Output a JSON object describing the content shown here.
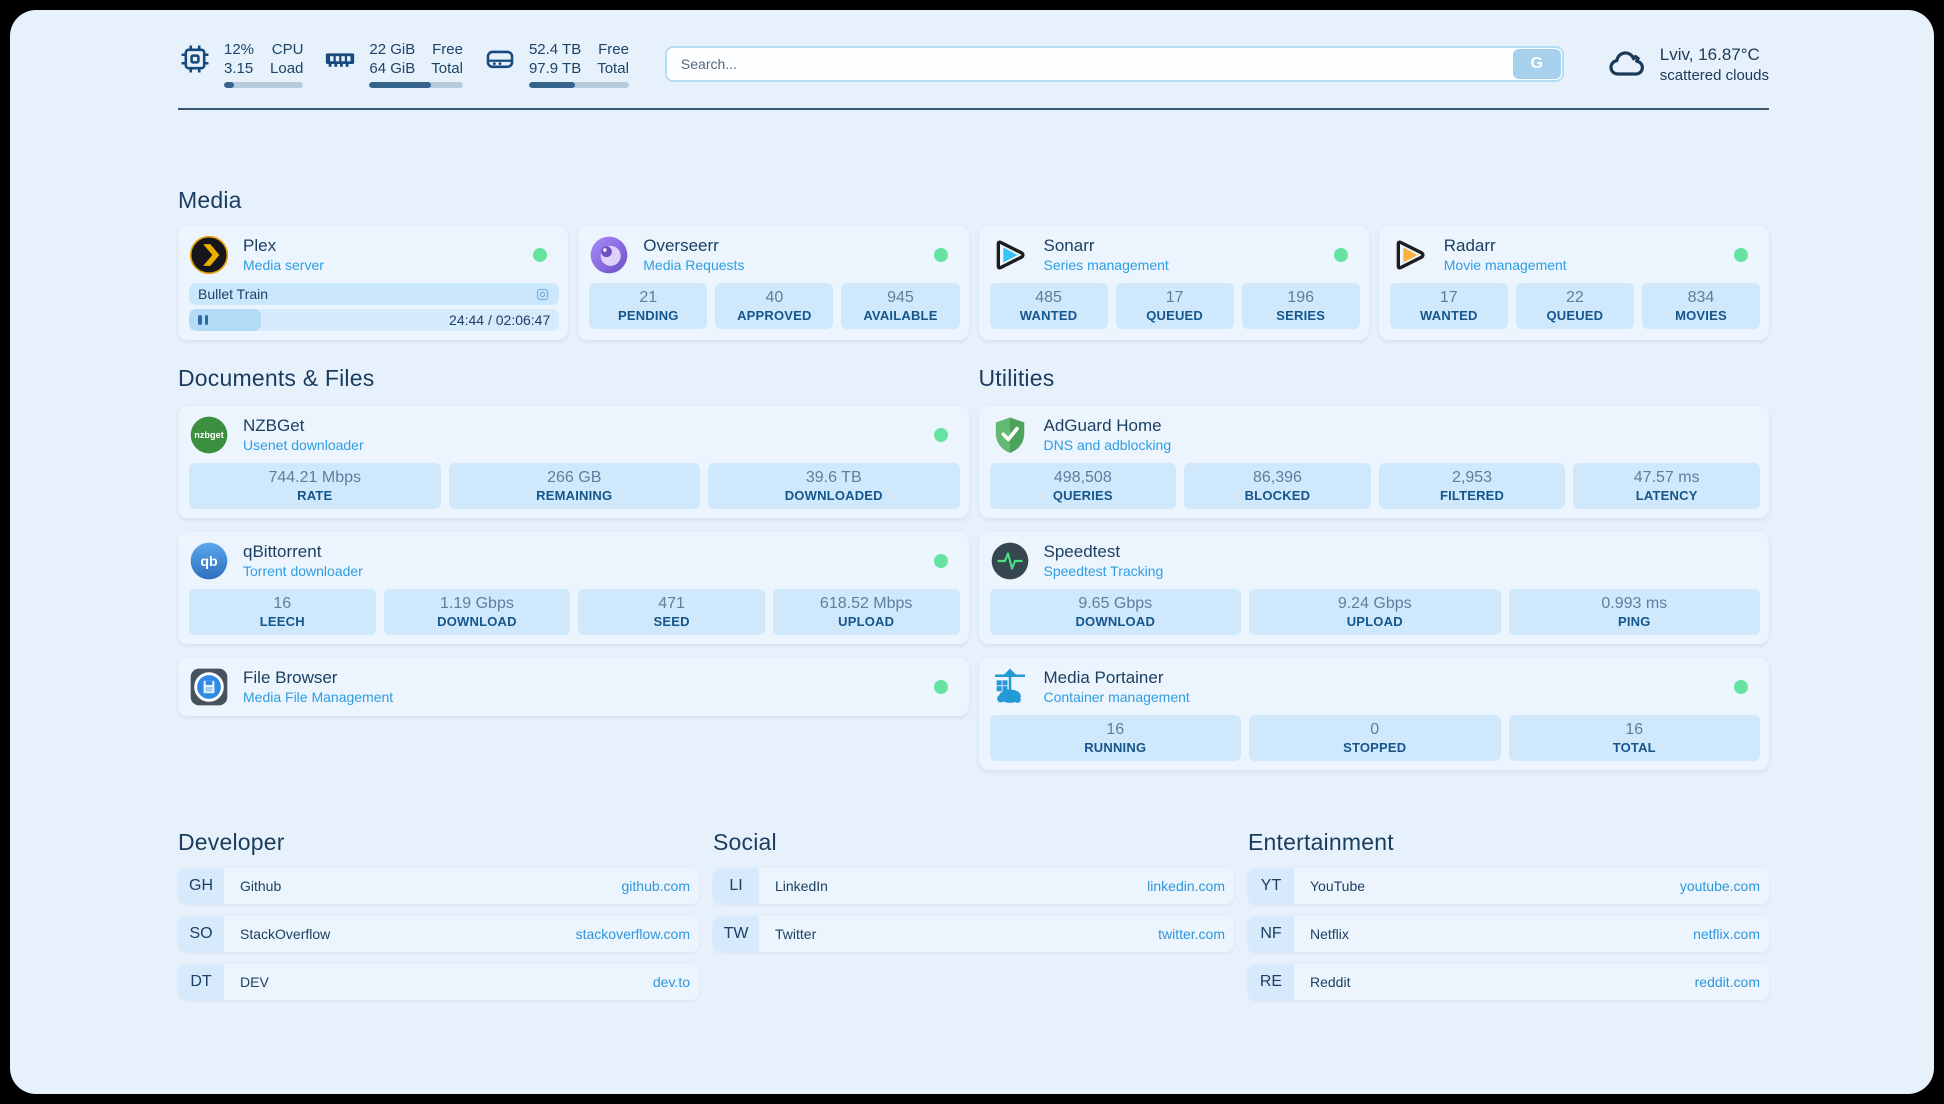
{
  "topbar": {
    "cpu": {
      "value_top": "12%",
      "value_bottom": "3.15",
      "label_top": "CPU",
      "label_bottom": "Load",
      "progress_pct": 12
    },
    "memory": {
      "value_top": "22 GiB",
      "value_bottom": "64 GiB",
      "label_top": "Free",
      "label_bottom": "Total",
      "progress_pct": 66
    },
    "storage": {
      "value_top": "52.4 TB",
      "value_bottom": "97.9 TB",
      "label_top": "Free",
      "label_bottom": "Total",
      "progress_pct": 46
    },
    "search": {
      "placeholder": "Search...",
      "button_label": "G"
    },
    "weather": {
      "location_temp": "Lviv, 16.87°C",
      "condition": "scattered clouds"
    }
  },
  "colors": {
    "accent_blue": "#2f9de2",
    "status_online": "#66e3a1",
    "label_blue": "#15568c",
    "navy": "#1c3f63"
  },
  "sections": {
    "media": {
      "title": "Media",
      "cards": [
        {
          "name": "Plex",
          "subtitle": "Media server",
          "status": "online",
          "now_playing": {
            "title": "Bullet Train",
            "time": "24:44 / 02:06:47",
            "progress_pct": 19.5
          }
        },
        {
          "name": "Overseerr",
          "subtitle": "Media Requests",
          "status": "online",
          "stats": [
            {
              "value": "21",
              "label": "PENDING"
            },
            {
              "value": "40",
              "label": "APPROVED"
            },
            {
              "value": "945",
              "label": "AVAILABLE"
            }
          ]
        },
        {
          "name": "Sonarr",
          "subtitle": "Series management",
          "status": "online",
          "stats": [
            {
              "value": "485",
              "label": "WANTED"
            },
            {
              "value": "17",
              "label": "QUEUED"
            },
            {
              "value": "196",
              "label": "SERIES"
            }
          ]
        },
        {
          "name": "Radarr",
          "subtitle": "Movie management",
          "status": "online",
          "stats": [
            {
              "value": "17",
              "label": "WANTED"
            },
            {
              "value": "22",
              "label": "QUEUED"
            },
            {
              "value": "834",
              "label": "MOVIES"
            }
          ]
        }
      ]
    },
    "documents": {
      "title": "Documents & Files",
      "cards": [
        {
          "name": "NZBGet",
          "subtitle": "Usenet downloader",
          "status": "online",
          "stats": [
            {
              "value": "744.21 Mbps",
              "label": "RATE"
            },
            {
              "value": "266 GB",
              "label": "REMAINING"
            },
            {
              "value": "39.6 TB",
              "label": "DOWNLOADED"
            }
          ]
        },
        {
          "name": "qBittorrent",
          "subtitle": "Torrent downloader",
          "status": "online",
          "stats": [
            {
              "value": "16",
              "label": "LEECH"
            },
            {
              "value": "1.19 Gbps",
              "label": "DOWNLOAD"
            },
            {
              "value": "471",
              "label": "SEED"
            },
            {
              "value": "618.52 Mbps",
              "label": "UPLOAD"
            }
          ]
        },
        {
          "name": "File Browser",
          "subtitle": "Media File Management",
          "status": "online",
          "stats": []
        }
      ]
    },
    "utilities": {
      "title": "Utilities",
      "cards": [
        {
          "name": "AdGuard Home",
          "subtitle": "DNS and adblocking",
          "status": "online",
          "stats": [
            {
              "value": "498,508",
              "label": "QUERIES"
            },
            {
              "value": "86,396",
              "label": "BLOCKED"
            },
            {
              "value": "2,953",
              "label": "FILTERED"
            },
            {
              "value": "47.57 ms",
              "label": "LATENCY"
            }
          ]
        },
        {
          "name": "Speedtest",
          "subtitle": "Speedtest Tracking",
          "status": "online",
          "stats": [
            {
              "value": "9.65 Gbps",
              "label": "DOWNLOAD"
            },
            {
              "value": "9.24 Gbps",
              "label": "UPLOAD"
            },
            {
              "value": "0.993 ms",
              "label": "PING"
            }
          ]
        },
        {
          "name": "Media Portainer",
          "subtitle": "Container management",
          "status": "online",
          "stats": [
            {
              "value": "16",
              "label": "RUNNING"
            },
            {
              "value": "0",
              "label": "STOPPED"
            },
            {
              "value": "16",
              "label": "TOTAL"
            }
          ]
        }
      ]
    }
  },
  "bookmarks": [
    {
      "title": "Developer",
      "links": [
        {
          "badge": "GH",
          "name": "Github",
          "url": "github.com"
        },
        {
          "badge": "SO",
          "name": "StackOverflow",
          "url": "stackoverflow.com"
        },
        {
          "badge": "DT",
          "name": "DEV",
          "url": "dev.to"
        }
      ]
    },
    {
      "title": "Social",
      "links": [
        {
          "badge": "LI",
          "name": "LinkedIn",
          "url": "linkedin.com"
        },
        {
          "badge": "TW",
          "name": "Twitter",
          "url": "twitter.com"
        }
      ]
    },
    {
      "title": "Entertainment",
      "links": [
        {
          "badge": "YT",
          "name": "YouTube",
          "url": "youtube.com"
        },
        {
          "badge": "NF",
          "name": "Netflix",
          "url": "netflix.com"
        },
        {
          "badge": "RE",
          "name": "Reddit",
          "url": "reddit.com"
        }
      ]
    }
  ]
}
